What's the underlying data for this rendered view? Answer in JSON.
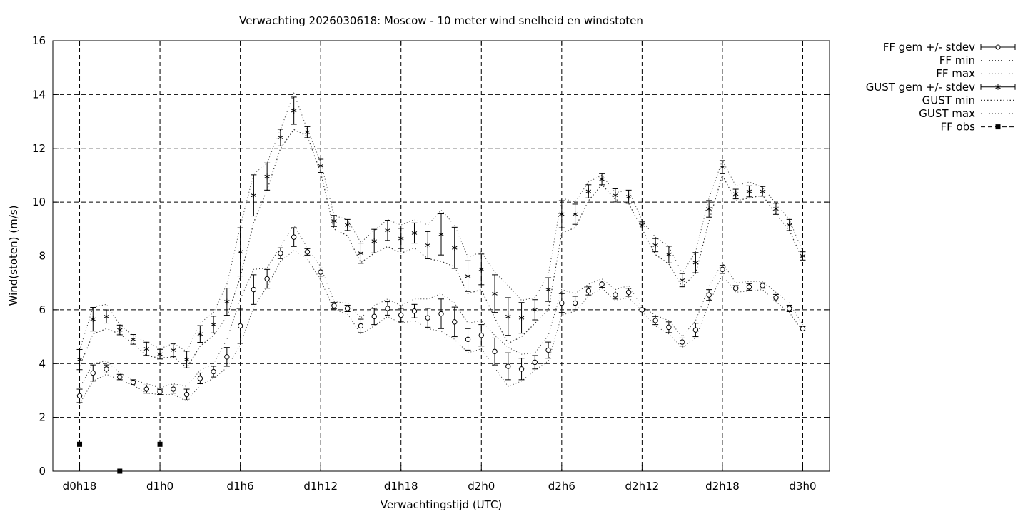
{
  "chart_data": {
    "type": "line",
    "title": "Verwachting 2026030618: Moscow - 10 meter wind snelheid en windstoten",
    "xlabel": "Verwachtingstijd (UTC)",
    "ylabel": "Wind(stoten) (m/s)",
    "x_unit": "hours since d0h18",
    "xlim": [
      -2,
      56
    ],
    "ylim": [
      0,
      16
    ],
    "yticks": [
      0,
      2,
      4,
      6,
      8,
      10,
      12,
      14,
      16
    ],
    "xticks": [
      {
        "x": 0,
        "label": "d0h18"
      },
      {
        "x": 6,
        "label": "d1h0"
      },
      {
        "x": 12,
        "label": "d1h6"
      },
      {
        "x": 18,
        "label": "d1h12"
      },
      {
        "x": 24,
        "label": "d1h18"
      },
      {
        "x": 30,
        "label": "d2h0"
      },
      {
        "x": 36,
        "label": "d2h6"
      },
      {
        "x": 42,
        "label": "d2h12"
      },
      {
        "x": 48,
        "label": "d2h18"
      },
      {
        "x": 54,
        "label": "d3h0"
      }
    ],
    "grid": true,
    "legend_position": "outside-top-right",
    "legend": [
      "FF gem +/- stdev",
      "FF min",
      "FF max",
      "GUST gem +/- stdev",
      "GUST min",
      "GUST max",
      "FF obs"
    ],
    "x": [
      0,
      1,
      2,
      3,
      4,
      5,
      6,
      7,
      8,
      9,
      10,
      11,
      12,
      13,
      14,
      15,
      16,
      17,
      18,
      19,
      20,
      21,
      22,
      23,
      24,
      25,
      26,
      27,
      28,
      29,
      30,
      31,
      32,
      33,
      34,
      35,
      36,
      37,
      38,
      39,
      40,
      41,
      42,
      43,
      44,
      45,
      46,
      47,
      48,
      49,
      50,
      51,
      52,
      53,
      54
    ],
    "series": [
      {
        "name": "FF gem +/- stdev",
        "values": [
          2.8,
          3.65,
          3.8,
          3.5,
          3.3,
          3.05,
          2.95,
          3.05,
          2.85,
          3.45,
          3.7,
          4.25,
          5.4,
          6.75,
          7.15,
          8.1,
          8.7,
          8.15,
          7.4,
          6.15,
          6.05,
          5.4,
          5.75,
          6.05,
          5.8,
          5.95,
          5.7,
          5.85,
          5.55,
          4.9,
          5.05,
          4.45,
          3.9,
          3.8,
          4.05,
          4.5,
          6.25,
          6.25,
          6.7,
          6.95,
          6.55,
          6.65,
          6.0,
          5.6,
          5.35,
          4.8,
          5.25,
          6.55,
          7.5,
          6.8,
          6.85,
          6.9,
          6.45,
          6.05,
          5.3
        ],
        "stdev": [
          0.25,
          0.3,
          0.15,
          0.1,
          0.1,
          0.15,
          0.1,
          0.15,
          0.2,
          0.2,
          0.2,
          0.35,
          0.65,
          0.55,
          0.35,
          0.2,
          0.35,
          0.12,
          0.15,
          0.12,
          0.12,
          0.25,
          0.3,
          0.25,
          0.25,
          0.25,
          0.35,
          0.55,
          0.55,
          0.4,
          0.4,
          0.5,
          0.5,
          0.4,
          0.25,
          0.3,
          0.35,
          0.25,
          0.15,
          0.12,
          0.15,
          0.15,
          0.05,
          0.15,
          0.2,
          0.15,
          0.25,
          0.2,
          0.15,
          0.1,
          0.12,
          0.1,
          0.12,
          0.12,
          0.08
        ]
      },
      {
        "name": "FF min",
        "values": [
          2.5,
          3.35,
          3.6,
          3.4,
          3.2,
          2.9,
          2.85,
          2.85,
          2.6,
          3.2,
          3.45,
          3.85,
          4.7,
          6.1,
          6.85,
          7.8,
          8.2,
          7.9,
          7.1,
          6.0,
          5.85,
          5.1,
          5.4,
          5.75,
          5.5,
          5.6,
          5.3,
          5.2,
          4.9,
          4.4,
          4.55,
          3.85,
          3.15,
          3.35,
          3.75,
          4.1,
          5.8,
          5.95,
          6.5,
          6.8,
          6.35,
          6.45,
          5.95,
          5.4,
          5.1,
          4.6,
          4.95,
          6.25,
          7.3,
          6.65,
          6.7,
          6.75,
          6.3,
          5.9,
          5.2
        ]
      },
      {
        "name": "FF max",
        "values": [
          3.1,
          4.0,
          4.1,
          3.65,
          3.4,
          3.25,
          3.1,
          3.25,
          3.15,
          3.75,
          4.0,
          4.9,
          6.4,
          7.5,
          7.55,
          8.35,
          9.15,
          8.3,
          7.6,
          6.3,
          6.25,
          5.7,
          6.15,
          6.4,
          6.15,
          6.4,
          6.4,
          6.6,
          6.25,
          5.5,
          5.6,
          5.05,
          4.6,
          4.35,
          4.4,
          5.05,
          6.75,
          6.6,
          6.95,
          7.15,
          6.75,
          6.9,
          6.1,
          5.8,
          5.6,
          5.0,
          5.6,
          6.85,
          7.75,
          7.0,
          7.05,
          7.05,
          6.65,
          6.25,
          5.45
        ]
      },
      {
        "name": "GUST gem +/- stdev",
        "values": [
          4.15,
          5.65,
          5.75,
          5.25,
          4.9,
          4.55,
          4.35,
          4.5,
          4.15,
          5.1,
          5.45,
          6.3,
          8.15,
          10.25,
          10.95,
          12.4,
          13.4,
          12.6,
          11.35,
          9.3,
          9.15,
          8.1,
          8.55,
          8.95,
          8.65,
          8.85,
          8.4,
          8.8,
          8.3,
          7.25,
          7.5,
          6.6,
          5.75,
          5.7,
          6.0,
          6.75,
          9.55,
          9.55,
          10.4,
          10.85,
          10.25,
          10.2,
          9.15,
          8.4,
          8.05,
          7.1,
          7.75,
          9.75,
          11.3,
          10.3,
          10.4,
          10.4,
          9.75,
          9.15,
          8.0
        ]
      },
      {
        "name": "GUST min",
        "values": [
          3.9,
          5.1,
          5.3,
          5.1,
          4.75,
          4.3,
          4.2,
          4.25,
          3.85,
          4.65,
          5.05,
          5.75,
          7.2,
          9.25,
          10.45,
          12.0,
          12.7,
          12.45,
          11.1,
          9.0,
          8.75,
          7.75,
          8.1,
          8.35,
          8.1,
          8.3,
          7.9,
          7.8,
          7.6,
          6.6,
          6.75,
          5.7,
          4.75,
          5.0,
          5.5,
          6.0,
          8.85,
          9.05,
          10.05,
          10.65,
          10.1,
          9.95,
          9.0,
          8.05,
          7.7,
          6.85,
          7.35,
          9.3,
          11.0,
          10.05,
          10.15,
          10.25,
          9.55,
          8.95,
          7.85
        ]
      },
      {
        "name": "GUST max",
        "values": [
          4.5,
          6.1,
          6.2,
          5.45,
          5.05,
          4.8,
          4.55,
          4.75,
          4.45,
          5.5,
          5.9,
          6.95,
          9.1,
          11.05,
          11.45,
          12.7,
          14.05,
          12.7,
          11.5,
          9.5,
          9.35,
          8.5,
          8.95,
          9.35,
          9.15,
          9.35,
          9.15,
          9.7,
          9.15,
          7.95,
          8.15,
          7.4,
          6.9,
          6.35,
          6.45,
          7.3,
          10.15,
          10.0,
          10.75,
          11.0,
          10.35,
          10.45,
          9.3,
          8.7,
          8.35,
          7.35,
          8.15,
          10.15,
          11.55,
          10.6,
          10.75,
          10.55,
          9.95,
          9.35,
          8.15
        ]
      },
      {
        "name": "FF obs",
        "x": [
          0,
          3,
          6
        ],
        "values": [
          1.0,
          0.0,
          1.0
        ]
      }
    ]
  }
}
